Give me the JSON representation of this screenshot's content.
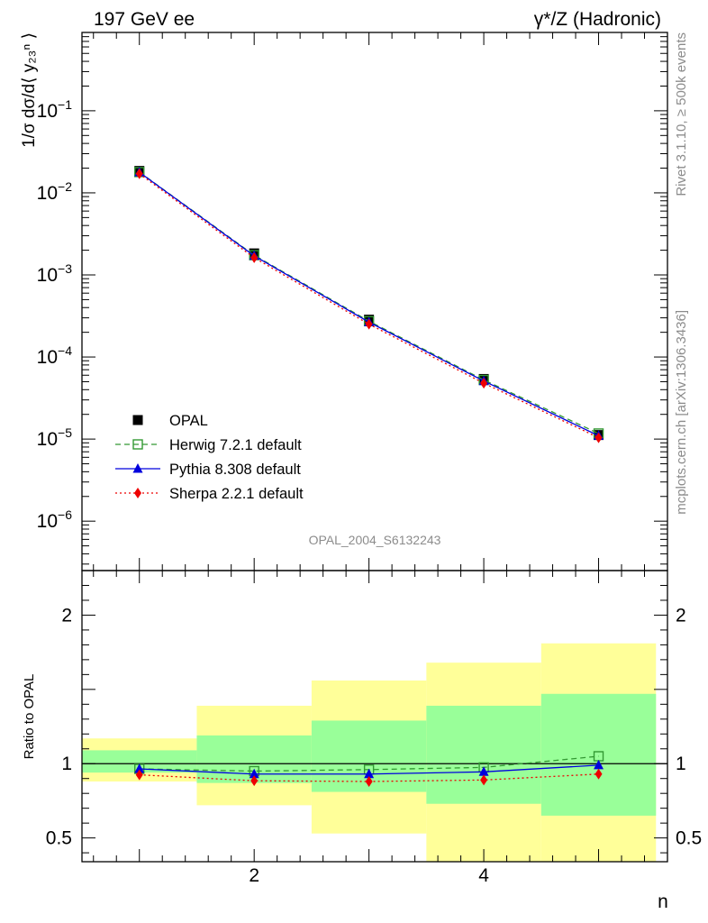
{
  "header": {
    "left_title": "197 GeV ee",
    "right_title": "γ*/Z (Hadronic)"
  },
  "side_labels": {
    "rivet": "Rivet 3.1.10, ≥ 500k events",
    "mcplots": "mcplots.cern.ch [arXiv:1306.3436]"
  },
  "watermark": "OPAL_2004_S6132243",
  "x_axis": {
    "label": "n",
    "range": [
      0.5,
      5.6
    ],
    "ticks": [
      {
        "value": 2,
        "label": "2"
      },
      {
        "value": 4,
        "label": "4"
      }
    ]
  },
  "chart_data": [
    {
      "type": "line",
      "panel": "main",
      "ylabel": "1/σ dσ/d⟨ y₂₃ⁿ ⟩",
      "yscale": "log",
      "ylim": [
        2.5e-07,
        0.9
      ],
      "yticks": [
        {
          "value": 1e-06,
          "base": "10",
          "exp": "−6"
        },
        {
          "value": 1e-05,
          "base": "10",
          "exp": "−5"
        },
        {
          "value": 0.0001,
          "base": "10",
          "exp": "−4"
        },
        {
          "value": 0.001,
          "base": "10",
          "exp": "−3"
        },
        {
          "value": 0.01,
          "base": "10",
          "exp": "−2"
        },
        {
          "value": 0.1,
          "base": "10",
          "exp": "−1"
        }
      ],
      "x": [
        1,
        2,
        3,
        4,
        5
      ],
      "series": [
        {
          "name": "OPAL",
          "color": "#000000",
          "marker": "square",
          "values": [
            0.0185,
            0.00183,
            0.000285,
            5.4e-05,
            1.12e-05
          ]
        },
        {
          "name": "Herwig 7.2.1 default",
          "color": "#339933",
          "marker": "open-square",
          "dash": "6,4",
          "values": [
            0.0179,
            0.00174,
            0.000273,
            5.25e-05,
            1.17e-05
          ]
        },
        {
          "name": "Pythia 8.308 default",
          "color": "#0000dd",
          "marker": "triangle",
          "dash": "",
          "values": [
            0.0178,
            0.00171,
            0.000266,
            5.1e-05,
            1.1e-05
          ]
        },
        {
          "name": "Sherpa 2.2.1 default",
          "color": "#ee0000",
          "marker": "diamond",
          "dash": "2,3",
          "values": [
            0.0171,
            0.00162,
            0.000251,
            4.8e-05,
            1.04e-05
          ]
        }
      ]
    },
    {
      "type": "line",
      "panel": "ratio",
      "ylabel": "Ratio to OPAL",
      "ylim": [
        0.34,
        2.3
      ],
      "yticks": [
        {
          "value": 0.5,
          "label": "0.5"
        },
        {
          "value": 1,
          "label": "1"
        },
        {
          "value": 2,
          "label": "2"
        }
      ],
      "x": [
        1,
        2,
        3,
        4,
        5
      ],
      "bands": [
        {
          "x": [
            0.5,
            1.5
          ],
          "green": [
            0.94,
            1.09
          ],
          "yellow": [
            0.88,
            1.17
          ]
        },
        {
          "x": [
            1.5,
            2.5
          ],
          "green": [
            0.87,
            1.19
          ],
          "yellow": [
            0.72,
            1.39
          ]
        },
        {
          "x": [
            2.5,
            3.5
          ],
          "green": [
            0.81,
            1.29
          ],
          "yellow": [
            0.53,
            1.56
          ]
        },
        {
          "x": [
            3.5,
            4.5
          ],
          "green": [
            0.73,
            1.39
          ],
          "yellow": [
            0.34,
            1.68
          ]
        },
        {
          "x": [
            4.5,
            5.5
          ],
          "green": [
            0.65,
            1.47
          ],
          "yellow": [
            0.34,
            1.81
          ]
        }
      ],
      "series": [
        {
          "name": "Herwig 7.2.1 default",
          "color": "#339933",
          "marker": "open-square",
          "dash": "6,4",
          "values": [
            0.965,
            0.95,
            0.96,
            0.975,
            1.05
          ]
        },
        {
          "name": "Pythia 8.308 default",
          "color": "#0000dd",
          "marker": "triangle",
          "dash": "",
          "values": [
            0.965,
            0.93,
            0.93,
            0.945,
            0.99
          ]
        },
        {
          "name": "Sherpa 2.2.1 default",
          "color": "#ee0000",
          "marker": "diamond",
          "dash": "2,3",
          "values": [
            0.925,
            0.885,
            0.88,
            0.89,
            0.93
          ]
        }
      ]
    }
  ],
  "legend": [
    {
      "label": "OPAL",
      "color": "#000000",
      "marker": "square",
      "line": false,
      "dash": ""
    },
    {
      "label": "Herwig 7.2.1 default",
      "color": "#339933",
      "marker": "open-square",
      "line": true,
      "dash": "6,4"
    },
    {
      "label": "Pythia 8.308 default",
      "color": "#0000dd",
      "marker": "triangle",
      "line": true,
      "dash": ""
    },
    {
      "label": "Sherpa 2.2.1 default",
      "color": "#ee0000",
      "marker": "diamond",
      "line": true,
      "dash": "2,3"
    }
  ],
  "colors": {
    "band_green": "#99ff99",
    "band_yellow": "#ffff99"
  }
}
